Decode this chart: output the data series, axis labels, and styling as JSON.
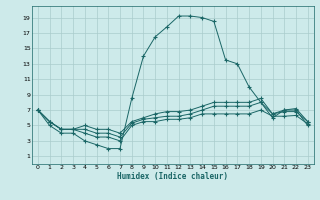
{
  "xlabel": "Humidex (Indice chaleur)",
  "background_color": "#cdeaea",
  "grid_color": "#aacccc",
  "line_color": "#1a6666",
  "x_ticks": [
    0,
    1,
    2,
    3,
    4,
    5,
    6,
    7,
    8,
    9,
    10,
    11,
    12,
    13,
    14,
    15,
    16,
    17,
    18,
    19,
    20,
    21,
    22,
    23
  ],
  "y_ticks": [
    1,
    3,
    5,
    7,
    9,
    11,
    13,
    15,
    17,
    19
  ],
  "xlim": [
    -0.5,
    23.5
  ],
  "ylim": [
    0.0,
    20.5
  ],
  "series0": [
    7,
    5,
    4,
    4,
    3,
    2.5,
    2,
    2,
    8.5,
    14,
    16.5,
    17.8,
    19.2,
    19.2,
    19.0,
    18.5,
    13.5,
    13,
    10,
    8,
    6,
    7,
    7,
    5
  ],
  "series1": [
    7,
    5.5,
    4.5,
    4.5,
    4.0,
    3.5,
    3.5,
    3.0,
    5.0,
    5.5,
    5.5,
    5.8,
    5.8,
    6.0,
    6.5,
    6.5,
    6.5,
    6.5,
    6.5,
    7.0,
    6.2,
    6.2,
    6.3,
    5.2
  ],
  "series2": [
    7,
    5.5,
    4.5,
    4.5,
    4.5,
    4.0,
    4.0,
    3.5,
    5.3,
    5.8,
    6.0,
    6.2,
    6.2,
    6.5,
    7.0,
    7.5,
    7.5,
    7.5,
    7.5,
    8.0,
    6.5,
    6.8,
    6.8,
    5.5
  ],
  "series3": [
    7,
    5.5,
    4.5,
    4.5,
    5.0,
    4.5,
    4.5,
    4.0,
    5.5,
    6.0,
    6.5,
    6.8,
    6.8,
    7.0,
    7.5,
    8.0,
    8.0,
    8.0,
    8.0,
    8.5,
    6.5,
    7.0,
    7.2,
    5.5
  ]
}
